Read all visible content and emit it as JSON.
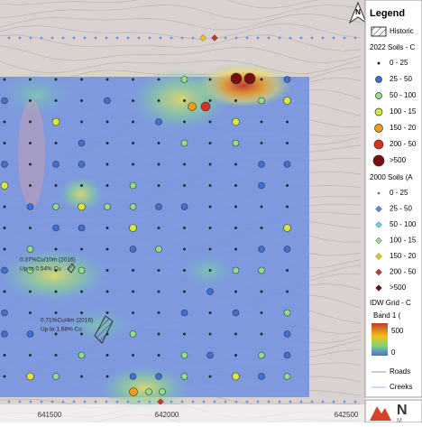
{
  "map": {
    "north_label": "N",
    "axis_labels": [
      "641500",
      "642000",
      "642500"
    ],
    "annotations": [
      "0.37%Cu/10m (2016)",
      "Up to 0.54% Cu",
      "0.71%Cu/4m (2016)",
      "Up to 1.68% Cu"
    ]
  },
  "legend": {
    "title": "Legend",
    "historic": "Historic",
    "soils_2022": {
      "title": "2022 Soils - C",
      "items": [
        "0 - 25",
        "25 - 50",
        "50 - 100",
        "100 - 15",
        "150 - 20",
        "200 - 50",
        ">500"
      ]
    },
    "soils_2000": {
      "title": "2000 Soils (A",
      "items": [
        "0 - 25",
        "25 - 50",
        "50 - 100",
        "100 - 15",
        "150 - 20",
        "200 - 50",
        ">500"
      ]
    },
    "idw": {
      "title": "IDW Grid - C",
      "band": "Band 1 (",
      "max": "500",
      "min": "0"
    },
    "roads": "Roads",
    "creeks": "Creeks"
  },
  "logo": {
    "main": "N",
    "sub": "M"
  }
}
